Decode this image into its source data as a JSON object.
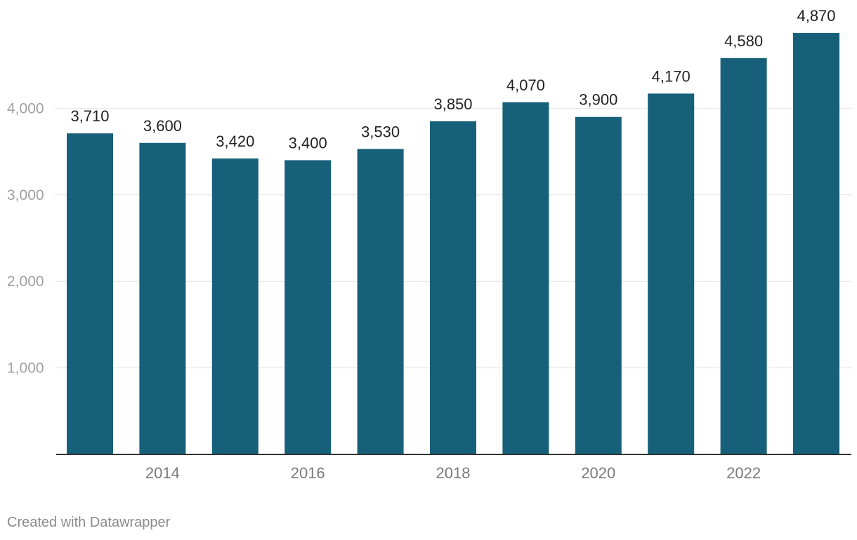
{
  "chart_data": {
    "type": "bar",
    "categories": [
      "2013",
      "2014",
      "2015",
      "2016",
      "2017",
      "2018",
      "2019",
      "2020",
      "2021",
      "2022",
      "2023"
    ],
    "values": [
      3710,
      3600,
      3420,
      3400,
      3530,
      3850,
      4070,
      3900,
      4170,
      4580,
      4870
    ],
    "value_labels": [
      "3,710",
      "3,600",
      "3,420",
      "3,400",
      "3,530",
      "3,850",
      "4,070",
      "3,900",
      "4,170",
      "4,580",
      "4,870"
    ],
    "x_tick_labels": [
      "2014",
      "2016",
      "2018",
      "2020",
      "2022"
    ],
    "y_ticks": [
      1000,
      2000,
      3000,
      4000
    ],
    "y_tick_labels": [
      "1,000",
      "2,000",
      "3,000",
      "4,000"
    ],
    "ylim": [
      0,
      5000
    ],
    "grid": true,
    "bar_color": "#176079",
    "title": "",
    "xlabel": "",
    "ylabel": ""
  },
  "footer": {
    "credit": "Created with Datawrapper"
  }
}
